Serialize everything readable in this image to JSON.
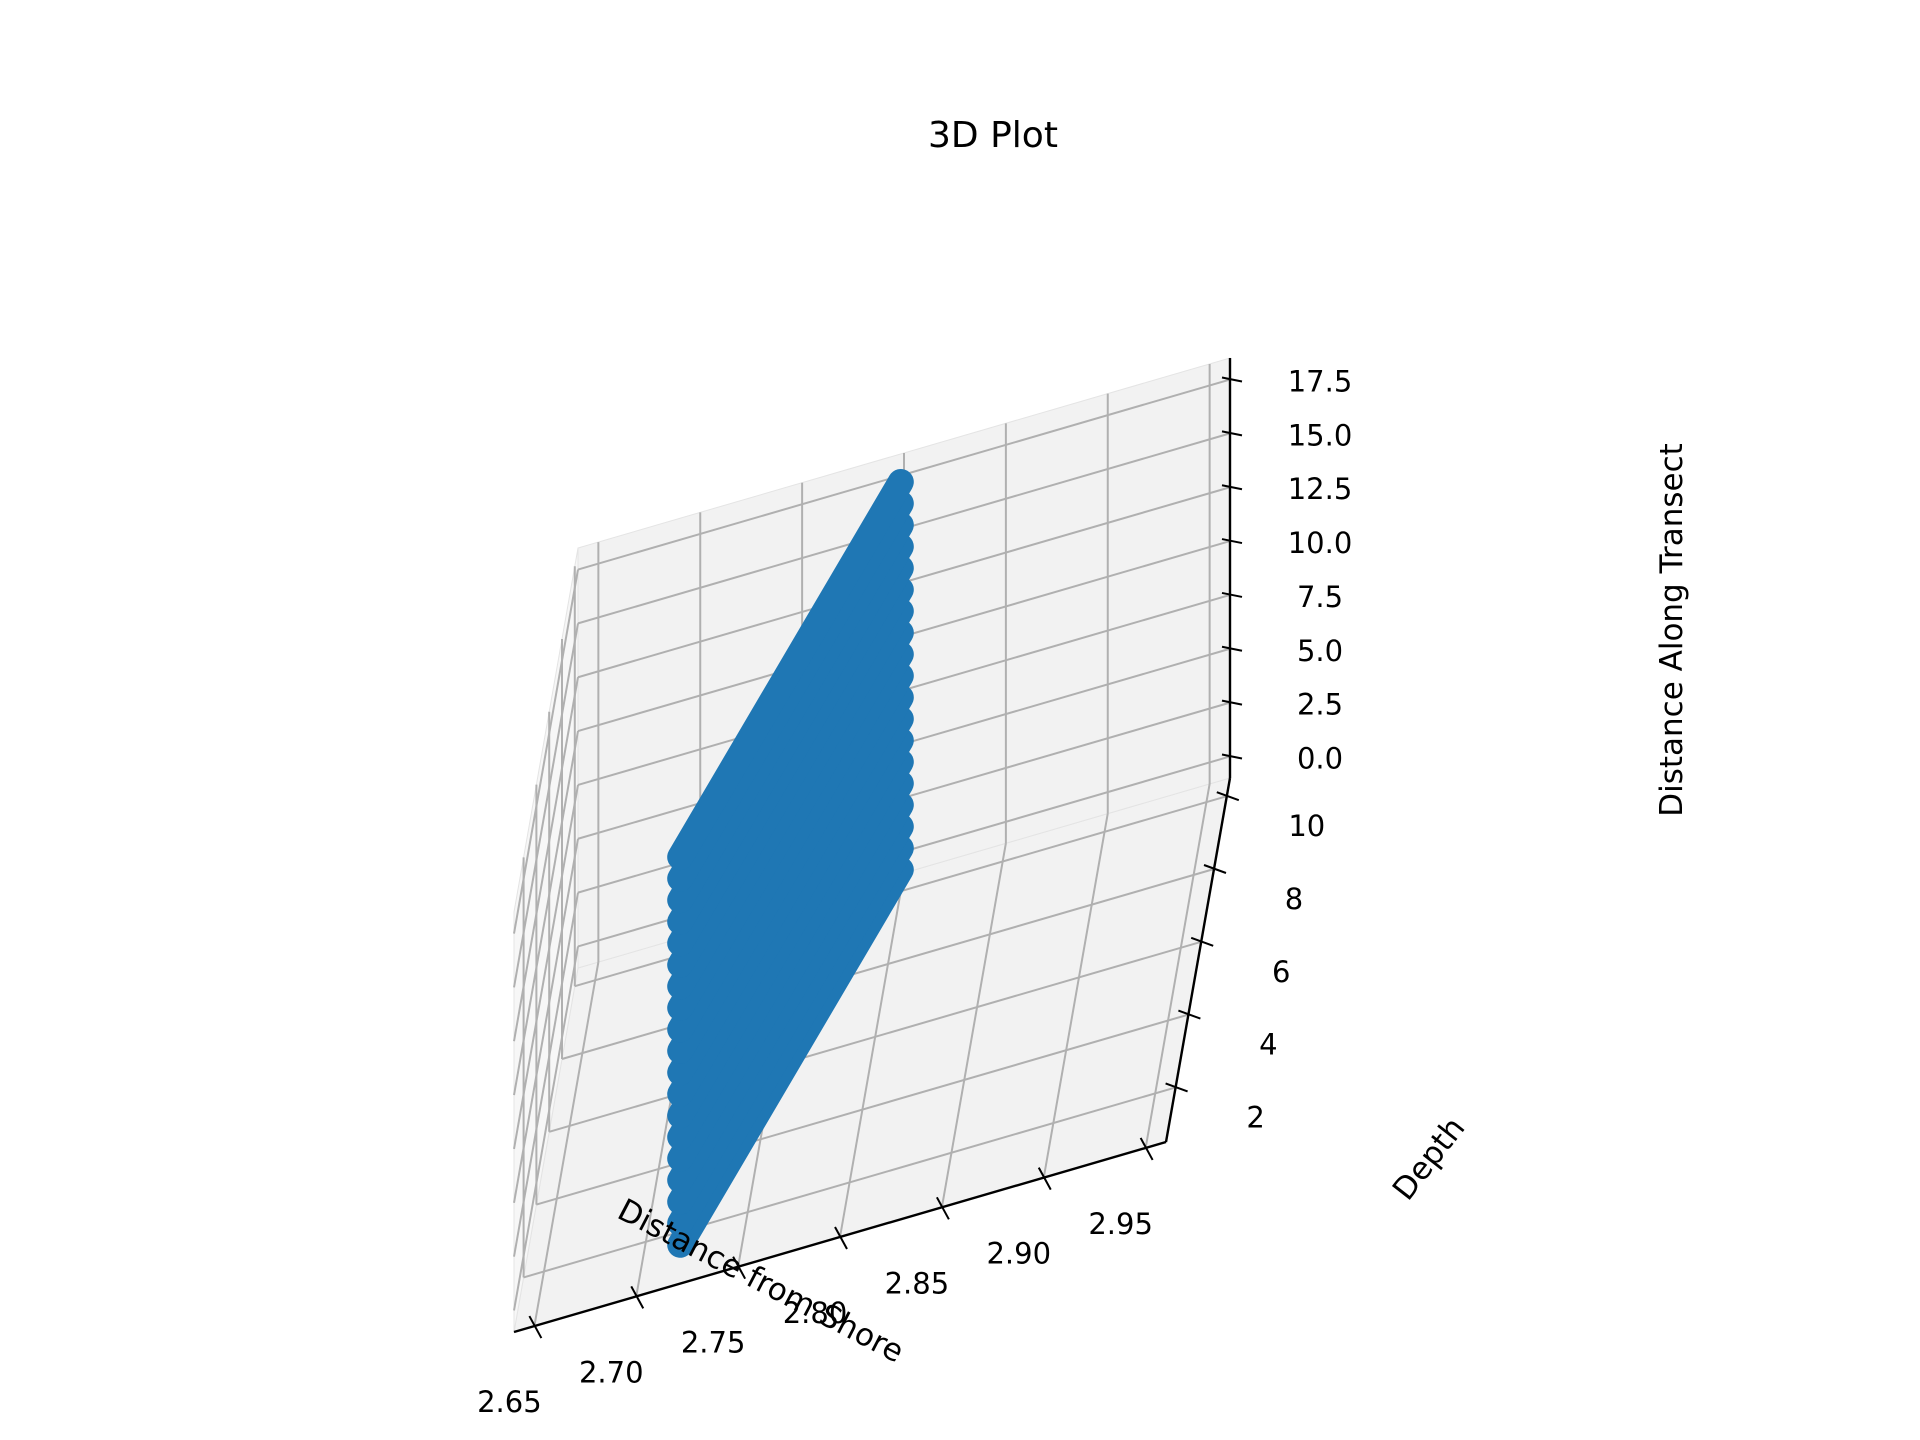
{
  "chart_data": {
    "type": "scatter",
    "projection": "3d",
    "title": "3D Plot",
    "xlabel": "Distance from Shore",
    "ylabel": "Depth",
    "zlabel": "Distance Along Transect",
    "xlim": [
      2.64,
      2.96
    ],
    "ylim": [
      0.5,
      10.5
    ],
    "zlim": [
      -1.0,
      18.5
    ],
    "xticks": [
      "2.65",
      "2.70",
      "2.75",
      "2.80",
      "2.85",
      "2.90",
      "2.95"
    ],
    "yticks": [
      "2",
      "4",
      "6",
      "8",
      "10"
    ],
    "zticks": [
      "0.0",
      "2.5",
      "5.0",
      "7.5",
      "10.0",
      "12.5",
      "15.0",
      "17.5"
    ],
    "grid": true,
    "series": [
      {
        "color": "#1f77b4",
        "line_values": [
          0,
          1,
          2,
          3,
          4,
          5,
          6,
          7,
          8,
          9,
          10,
          11,
          12,
          13,
          14,
          15,
          16,
          17,
          18
        ],
        "points_from": {
          "x": 2.72,
          "y": 1.0
        },
        "points_to": {
          "x": 2.8,
          "y": 10.0
        }
      }
    ]
  }
}
